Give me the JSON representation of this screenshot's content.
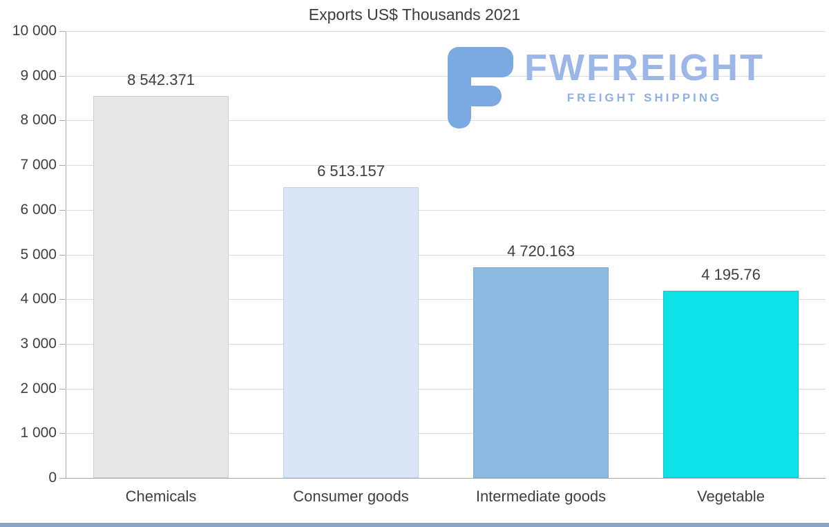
{
  "chart_data": {
    "type": "bar",
    "title": "Exports US$ Thousands 2021",
    "categories": [
      "Chemicals",
      "Consumer goods",
      "Intermediate goods",
      "Vegetable"
    ],
    "values": [
      8542.371,
      6513.157,
      4720.163,
      4195.76
    ],
    "value_labels": [
      "8 542.371",
      "6 513.157",
      "4 720.163",
      "4 195.76"
    ],
    "bar_colors": [
      "#e7e7e7",
      "#dae6f6",
      "#8cbae2",
      "#0ce2e8"
    ],
    "bar_border_colors": [
      "#cfcfcf",
      "#c2d5ec",
      "#7aaad8",
      "#00c6cf"
    ],
    "xlabel": "",
    "ylabel": "",
    "ylim": [
      0,
      10000
    ],
    "grid": true,
    "legend": false,
    "y_ticks": [
      {
        "value": 10000,
        "label": "10 000"
      },
      {
        "value": 9000,
        "label": "9 000"
      },
      {
        "value": 8000,
        "label": "8 000"
      },
      {
        "value": 7000,
        "label": "7 000"
      },
      {
        "value": 6000,
        "label": "6 000"
      },
      {
        "value": 5000,
        "label": "5 000"
      },
      {
        "value": 4000,
        "label": "4 000"
      },
      {
        "value": 3000,
        "label": "3 000"
      },
      {
        "value": 2000,
        "label": "2 000"
      },
      {
        "value": 1000,
        "label": "1 000"
      },
      {
        "value": 0,
        "label": "0"
      }
    ]
  },
  "logo": {
    "brand": "FWFREIGHT",
    "tagline": "FREIGHT SHIPPING",
    "brand_color": "#9cb7e7",
    "icon_color": "#7da9e2"
  }
}
